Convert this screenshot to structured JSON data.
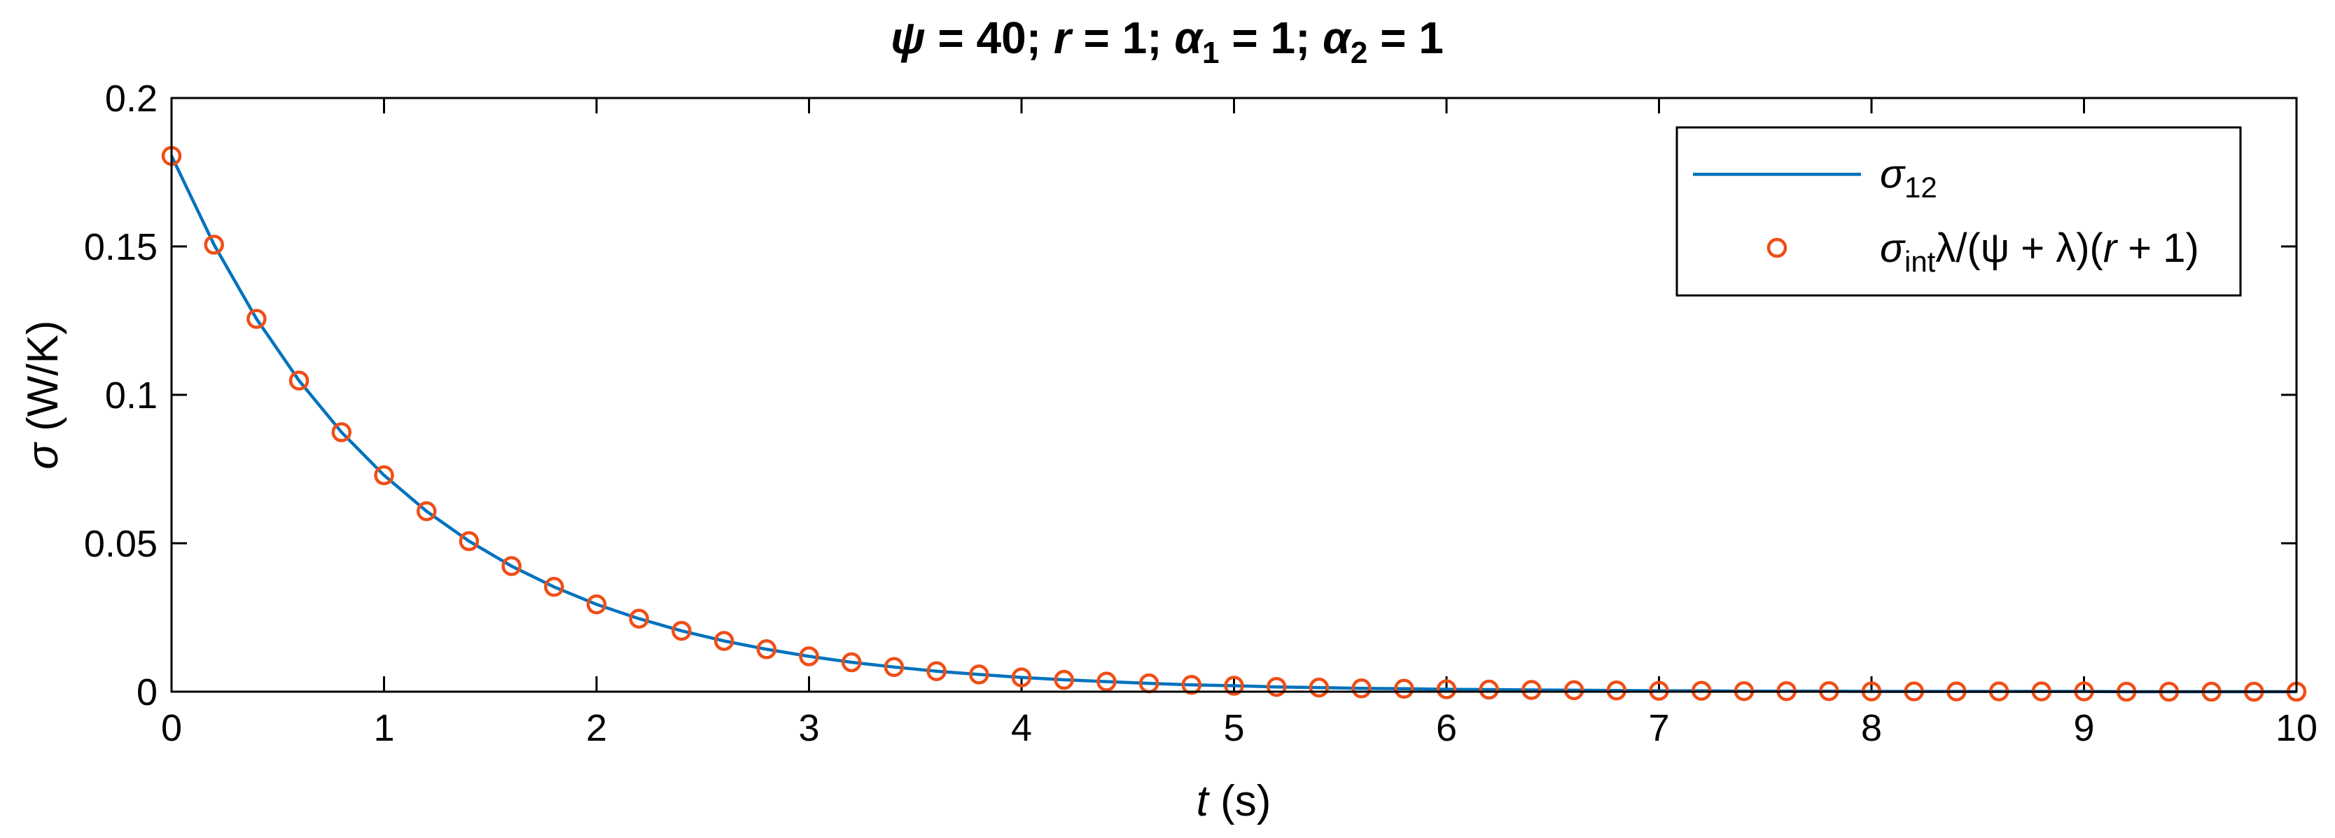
{
  "chart_data": {
    "type": "line",
    "title": "ψ = 40; r = 1; α1 = 1; α2 = 1",
    "title_parts": {
      "psi": "ψ",
      "psi_val": " = 40; ",
      "r": "r",
      "r_val": " = 1; ",
      "alpha": "α",
      "alpha1_sub": "1",
      "alpha1_val": " = 1; ",
      "alpha2_sub": "2",
      "alpha2_val": " = 1"
    },
    "xlabel": "t (s)",
    "xlabel_parts": {
      "var": "t",
      "unit": " (s)"
    },
    "ylabel": "σ (W/K)",
    "ylabel_parts": {
      "var": "σ",
      "unit": " (W/K)"
    },
    "xlim": [
      0,
      10
    ],
    "ylim": [
      0,
      0.2
    ],
    "xticks": [
      0,
      1,
      2,
      3,
      4,
      5,
      6,
      7,
      8,
      9,
      10
    ],
    "xtick_labels": [
      "0",
      "1",
      "2",
      "3",
      "4",
      "5",
      "6",
      "7",
      "8",
      "9",
      "10"
    ],
    "yticks": [
      0,
      0.05,
      0.1,
      0.15,
      0.2
    ],
    "ytick_labels": [
      "0",
      "0.05",
      "0.1",
      "0.15",
      "0.2"
    ],
    "grid": false,
    "legend_position": "top-right",
    "series": [
      {
        "name": "σ12",
        "legend_parts": {
          "main": "σ",
          "sub": "12"
        },
        "style": "line",
        "color": "#0072BD",
        "x": [
          0,
          0.2,
          0.4,
          0.6,
          0.8,
          1.0,
          1.2,
          1.4,
          1.6,
          1.8,
          2.0,
          2.2,
          2.4,
          2.6,
          2.8,
          3.0,
          3.2,
          3.4,
          3.6,
          3.8,
          4.0,
          4.2,
          4.4,
          4.6,
          4.8,
          5.0,
          5.2,
          5.4,
          5.6,
          5.8,
          6.0,
          6.2,
          6.4,
          6.6,
          6.8,
          7.0,
          7.2,
          7.4,
          7.6,
          7.8,
          8.0,
          8.2,
          8.4,
          8.6,
          8.8,
          9.0,
          9.2,
          9.4,
          9.6,
          9.8,
          10.0
        ],
        "y": [
          0.1805,
          0.1506,
          0.1256,
          0.1048,
          0.0874,
          0.0729,
          0.0608,
          0.0507,
          0.0423,
          0.0353,
          0.0294,
          0.0246,
          0.0205,
          0.0171,
          0.0143,
          0.0119,
          0.0099,
          0.0083,
          0.0069,
          0.0058,
          0.0048,
          0.004,
          0.0034,
          0.0028,
          0.0023,
          0.002,
          0.0016,
          0.0014,
          0.0011,
          0.001,
          0.0008,
          0.0007,
          0.0006,
          0.0005,
          0.0004,
          0.0003,
          0.0003,
          0.0002,
          0.0002,
          0.0002,
          0.0001,
          0.0001,
          0.0001,
          0.0001,
          0.0001,
          0.0001,
          0.0,
          0.0,
          0.0,
          0.0,
          0.0
        ]
      },
      {
        "name": "σintλ/(ψ + λ)(r + 1)",
        "legend_parts": {
          "main": "σ",
          "sub": "int",
          "rest1": "λ/(ψ + λ)(",
          "r": "r",
          "rest2": " + 1)"
        },
        "style": "markers",
        "color": "#EF4E17",
        "x": [
          0,
          0.2,
          0.4,
          0.6,
          0.8,
          1.0,
          1.2,
          1.4,
          1.6,
          1.8,
          2.0,
          2.2,
          2.4,
          2.6,
          2.8,
          3.0,
          3.2,
          3.4,
          3.6,
          3.8,
          4.0,
          4.2,
          4.4,
          4.6,
          4.8,
          5.0,
          5.2,
          5.4,
          5.6,
          5.8,
          6.0,
          6.2,
          6.4,
          6.6,
          6.8,
          7.0,
          7.2,
          7.4,
          7.6,
          7.8,
          8.0,
          8.2,
          8.4,
          8.6,
          8.8,
          9.0,
          9.2,
          9.4,
          9.6,
          9.8,
          10.0
        ],
        "y": [
          0.1805,
          0.1506,
          0.1256,
          0.1048,
          0.0874,
          0.0729,
          0.0608,
          0.0507,
          0.0423,
          0.0353,
          0.0294,
          0.0246,
          0.0205,
          0.0171,
          0.0143,
          0.0119,
          0.0099,
          0.0083,
          0.0069,
          0.0058,
          0.0048,
          0.004,
          0.0034,
          0.0028,
          0.0023,
          0.002,
          0.0016,
          0.0014,
          0.0011,
          0.001,
          0.0008,
          0.0007,
          0.0006,
          0.0005,
          0.0004,
          0.0003,
          0.0003,
          0.0002,
          0.0002,
          0.0002,
          0.0001,
          0.0001,
          0.0001,
          0.0001,
          0.0001,
          0.0001,
          0.0,
          0.0,
          0.0,
          0.0,
          0.0
        ]
      }
    ]
  }
}
